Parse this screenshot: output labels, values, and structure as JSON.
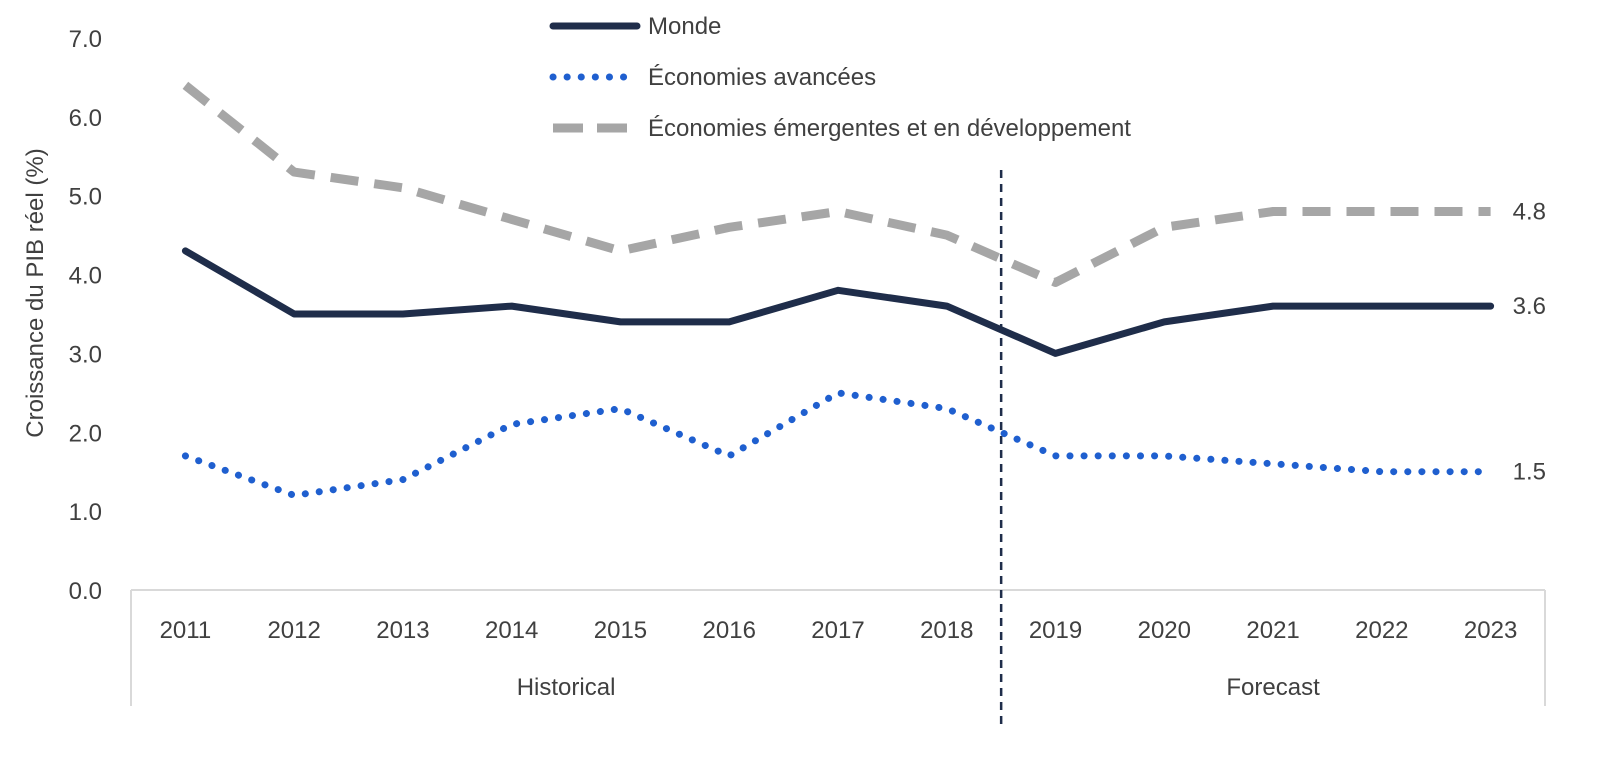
{
  "chart_data": {
    "type": "line",
    "title": "",
    "xlabel": "",
    "ylabel": "Croissance du PIB réel (%)",
    "ylim": [
      0,
      7
    ],
    "y_ticks": [
      "0.0",
      "1.0",
      "2.0",
      "3.0",
      "4.0",
      "5.0",
      "6.0",
      "7.0"
    ],
    "categories": [
      "2011",
      "2012",
      "2013",
      "2014",
      "2015",
      "2016",
      "2017",
      "2018",
      "2019",
      "2020",
      "2021",
      "2022",
      "2023"
    ],
    "groups": [
      {
        "label": "Historical",
        "categories": [
          "2011",
          "2012",
          "2013",
          "2014",
          "2015",
          "2016",
          "2017",
          "2018"
        ]
      },
      {
        "label": "Forecast",
        "categories": [
          "2019",
          "2020",
          "2021",
          "2022",
          "2023"
        ]
      }
    ],
    "series": [
      {
        "name": "Monde",
        "color": "#1f2d4a",
        "style": "solid",
        "values": [
          4.3,
          3.5,
          3.5,
          3.6,
          3.4,
          3.4,
          3.8,
          3.6,
          3.0,
          3.4,
          3.6,
          3.6,
          3.6
        ],
        "end_label": "3.6"
      },
      {
        "name": "Économies avancées",
        "color": "#1f5fcf",
        "style": "dotted",
        "values": [
          1.7,
          1.2,
          1.4,
          2.1,
          2.3,
          1.7,
          2.5,
          2.3,
          1.7,
          1.7,
          1.6,
          1.5,
          1.5
        ],
        "end_label": "1.5"
      },
      {
        "name": "Économies émergentes et en développement",
        "color": "#a6a6a6",
        "style": "dashed",
        "values": [
          6.4,
          5.3,
          5.1,
          4.7,
          4.3,
          4.6,
          4.8,
          4.5,
          3.9,
          4.6,
          4.8,
          4.8,
          4.8
        ],
        "end_label": "4.8"
      }
    ],
    "legend_position": "top-center",
    "grid": false,
    "divider_between": [
      "2018",
      "2019"
    ]
  }
}
